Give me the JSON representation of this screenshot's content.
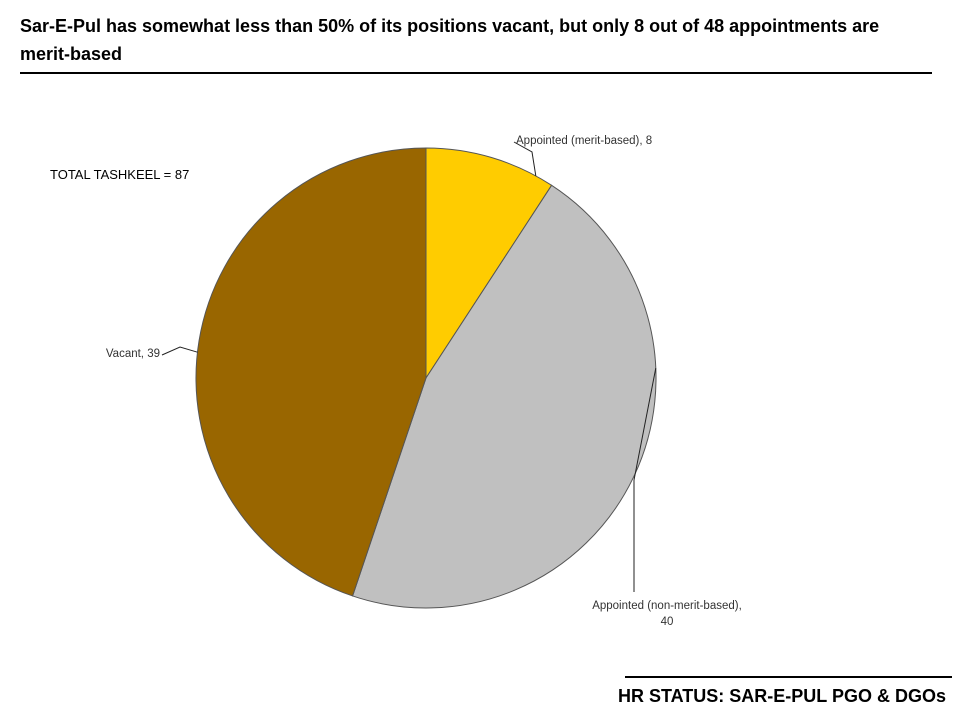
{
  "chart_data": {
    "type": "pie",
    "title": "Sar-E-Pul has somewhat less than 50% of its positions vacant, but only 8 out of 48 appointments are merit-based",
    "annotation": "TOTAL TASHKEEL = 87",
    "footer": "HR STATUS: SAR-E-PUL PGO & DGOs",
    "values": [
      8,
      40,
      39
    ],
    "value_labels": [
      "Appointed (merit-based), 8",
      "Appointed (non-merit-based), 40",
      "Vacant, 39"
    ],
    "colors": [
      "#FFCC00",
      "#C0C0C0",
      "#996600"
    ]
  }
}
